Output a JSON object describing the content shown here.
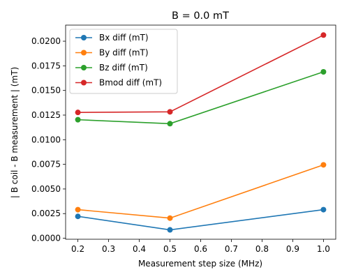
{
  "chart_data": {
    "type": "line",
    "title": "B = 0.0 mT",
    "xlabel": "Measurement step size (MHz)",
    "ylabel": "| B coil - B measurement | (mT)",
    "x": [
      0.2,
      0.5,
      1.0
    ],
    "xlim": [
      0.16,
      1.04
    ],
    "ylim": [
      -0.000103,
      0.021633
    ],
    "xticks": [
      "0.2",
      "0.3",
      "0.4",
      "0.5",
      "0.6",
      "0.7",
      "0.8",
      "0.9",
      "1.0"
    ],
    "yticks": [
      "0.0000",
      "0.0025",
      "0.0050",
      "0.0075",
      "0.0100",
      "0.0125",
      "0.0150",
      "0.0175",
      "0.0200"
    ],
    "grid": false,
    "legend_position": "top-left",
    "series": [
      {
        "name": "Bx diff (mT)",
        "color": "#1f77b4",
        "values": [
          0.00222,
          0.00085,
          0.0029
        ]
      },
      {
        "name": "By diff (mT)",
        "color": "#ff7f0e",
        "values": [
          0.0029,
          0.00204,
          0.00745
        ]
      },
      {
        "name": "Bz diff (mT)",
        "color": "#2ca02c",
        "values": [
          0.01203,
          0.01163,
          0.01689
        ]
      },
      {
        "name": "Bmod diff (mT)",
        "color": "#d62728",
        "values": [
          0.01277,
          0.01283,
          0.02062
        ]
      }
    ]
  }
}
